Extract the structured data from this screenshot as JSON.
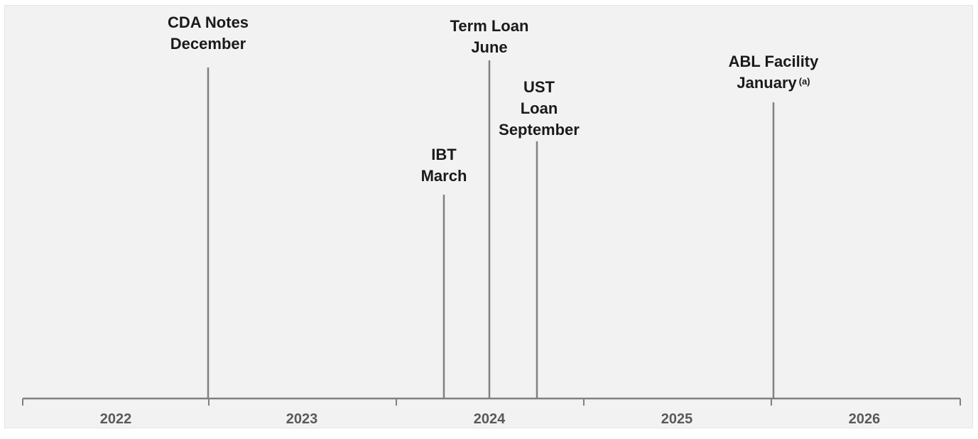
{
  "timeline": {
    "years": [
      "2022",
      "2023",
      "2024",
      "2025",
      "2026"
    ],
    "events": [
      {
        "name_line": "CDA Notes",
        "date_line": "December",
        "date": "2022-12",
        "footnote": ""
      },
      {
        "name_line": "IBT",
        "date_line": "March",
        "date": "2024-03",
        "footnote": ""
      },
      {
        "name_line": "Term Loan",
        "date_line": "June",
        "date": "2024-06",
        "footnote": ""
      },
      {
        "name_line": "UST Loan",
        "date_line": "September",
        "date": "2024-09",
        "footnote": ""
      },
      {
        "name_line": "ABL Facility",
        "date_line": "January",
        "date": "2026-01",
        "footnote": "(a)"
      }
    ]
  },
  "colors": {
    "background": "#f2f2f2",
    "axis": "#808080",
    "label_text": "#1a1a1a",
    "year_text": "#595959"
  }
}
